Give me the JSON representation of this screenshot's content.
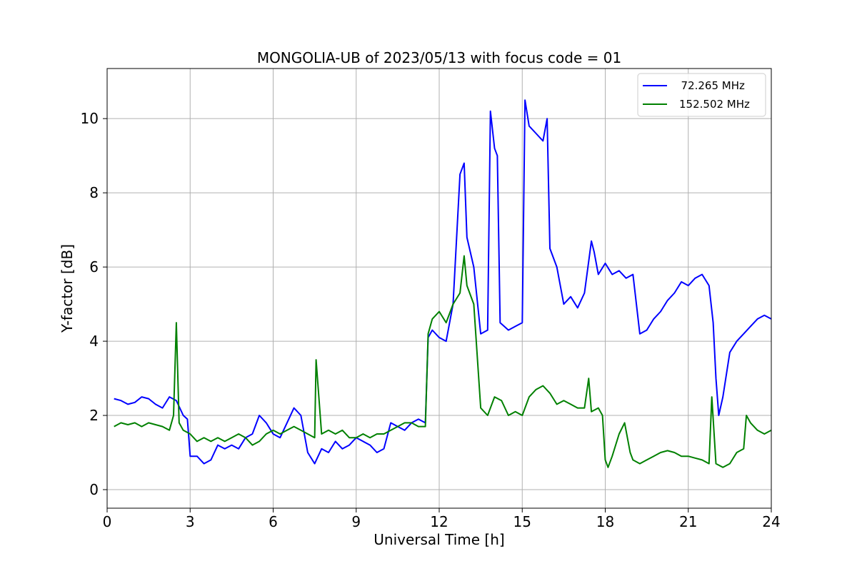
{
  "chart_data": {
    "type": "line",
    "title": "MONGOLIA-UB of 2023/05/13 with focus code = 01",
    "xlabel": "Universal Time [h]",
    "ylabel": "Y-factor [dB]",
    "xlim": [
      0,
      24
    ],
    "ylim": [
      -0.5,
      11.35
    ],
    "x_ticks": [
      0,
      3,
      6,
      9,
      12,
      15,
      18,
      21,
      24
    ],
    "y_ticks": [
      0,
      2,
      4,
      6,
      8,
      10
    ],
    "grid": true,
    "legend_position": "top-right",
    "series": [
      {
        "name": "  72.265 MHz",
        "color": "#0000ff",
        "x": [
          0.25,
          0.5,
          0.75,
          1.0,
          1.25,
          1.5,
          1.75,
          2.0,
          2.25,
          2.5,
          2.75,
          2.9,
          3.0,
          3.25,
          3.5,
          3.75,
          4.0,
          4.25,
          4.5,
          4.75,
          5.0,
          5.25,
          5.5,
          5.75,
          6.0,
          6.25,
          6.5,
          6.75,
          7.0,
          7.25,
          7.5,
          7.75,
          8.0,
          8.25,
          8.5,
          8.75,
          9.0,
          9.25,
          9.5,
          9.75,
          10.0,
          10.25,
          10.5,
          10.75,
          11.0,
          11.25,
          11.5,
          11.6,
          11.75,
          12.0,
          12.25,
          12.5,
          12.75,
          12.9,
          13.0,
          13.25,
          13.5,
          13.75,
          13.85,
          14.0,
          14.1,
          14.2,
          14.5,
          14.75,
          15.0,
          15.1,
          15.25,
          15.5,
          15.75,
          15.9,
          16.0,
          16.25,
          16.5,
          16.75,
          17.0,
          17.25,
          17.5,
          17.6,
          17.75,
          18.0,
          18.25,
          18.5,
          18.75,
          19.0,
          19.25,
          19.5,
          19.75,
          20.0,
          20.25,
          20.5,
          20.75,
          21.0,
          21.25,
          21.5,
          21.75,
          21.9,
          22.0,
          22.1,
          22.25,
          22.5,
          22.75,
          23.0,
          23.25,
          23.5,
          23.75,
          24.0
        ],
        "y": [
          2.45,
          2.4,
          2.3,
          2.35,
          2.5,
          2.45,
          2.3,
          2.2,
          2.5,
          2.4,
          2.0,
          1.9,
          0.9,
          0.9,
          0.7,
          0.8,
          1.2,
          1.1,
          1.2,
          1.1,
          1.4,
          1.5,
          2.0,
          1.8,
          1.5,
          1.4,
          1.8,
          2.2,
          2.0,
          1.0,
          0.7,
          1.1,
          1.0,
          1.3,
          1.1,
          1.2,
          1.4,
          1.3,
          1.2,
          1.0,
          1.1,
          1.8,
          1.7,
          1.6,
          1.8,
          1.9,
          1.8,
          4.1,
          4.3,
          4.1,
          4.0,
          5.0,
          8.5,
          8.8,
          6.8,
          6.0,
          4.2,
          4.3,
          10.2,
          9.2,
          9.0,
          4.5,
          4.3,
          4.4,
          4.5,
          10.5,
          9.8,
          9.6,
          9.4,
          10.0,
          6.5,
          6.0,
          5.0,
          5.2,
          4.9,
          5.3,
          6.7,
          6.4,
          5.8,
          6.1,
          5.8,
          5.9,
          5.7,
          5.8,
          4.2,
          4.3,
          4.6,
          4.8,
          5.1,
          5.3,
          5.6,
          5.5,
          5.7,
          5.8,
          5.5,
          4.5,
          3.0,
          2.0,
          2.5,
          3.7,
          4.0,
          4.2,
          4.4,
          4.6,
          4.7,
          4.6
        ]
      },
      {
        "name": "152.502 MHz",
        "color": "#008000",
        "x": [
          0.25,
          0.5,
          0.75,
          1.0,
          1.25,
          1.5,
          1.75,
          2.0,
          2.25,
          2.4,
          2.5,
          2.6,
          2.75,
          3.0,
          3.25,
          3.5,
          3.75,
          4.0,
          4.25,
          4.5,
          4.75,
          5.0,
          5.25,
          5.5,
          5.75,
          6.0,
          6.25,
          6.5,
          6.75,
          7.0,
          7.25,
          7.5,
          7.55,
          7.75,
          8.0,
          8.25,
          8.5,
          8.75,
          9.0,
          9.25,
          9.5,
          9.75,
          10.0,
          10.25,
          10.5,
          10.75,
          11.0,
          11.25,
          11.5,
          11.6,
          11.75,
          12.0,
          12.25,
          12.5,
          12.75,
          12.9,
          13.0,
          13.25,
          13.5,
          13.75,
          14.0,
          14.25,
          14.5,
          14.75,
          15.0,
          15.25,
          15.5,
          15.75,
          16.0,
          16.25,
          16.5,
          16.75,
          17.0,
          17.25,
          17.4,
          17.5,
          17.75,
          17.9,
          18.0,
          18.1,
          18.25,
          18.5,
          18.7,
          18.9,
          19.0,
          19.25,
          19.5,
          19.75,
          20.0,
          20.25,
          20.5,
          20.75,
          21.0,
          21.25,
          21.5,
          21.75,
          21.85,
          22.0,
          22.25,
          22.5,
          22.75,
          23.0,
          23.1,
          23.25,
          23.5,
          23.75,
          24.0
        ],
        "y": [
          1.7,
          1.8,
          1.75,
          1.8,
          1.7,
          1.8,
          1.75,
          1.7,
          1.6,
          2.0,
          4.5,
          1.8,
          1.6,
          1.5,
          1.3,
          1.4,
          1.3,
          1.4,
          1.3,
          1.4,
          1.5,
          1.4,
          1.2,
          1.3,
          1.5,
          1.6,
          1.5,
          1.6,
          1.7,
          1.6,
          1.5,
          1.4,
          3.5,
          1.5,
          1.6,
          1.5,
          1.6,
          1.4,
          1.4,
          1.5,
          1.4,
          1.5,
          1.5,
          1.6,
          1.7,
          1.8,
          1.8,
          1.7,
          1.7,
          4.2,
          4.6,
          4.8,
          4.5,
          5.0,
          5.3,
          6.3,
          5.5,
          5.0,
          2.2,
          2.0,
          2.5,
          2.4,
          2.0,
          2.1,
          2.0,
          2.5,
          2.7,
          2.8,
          2.6,
          2.3,
          2.4,
          2.3,
          2.2,
          2.2,
          3.0,
          2.1,
          2.2,
          2.0,
          0.8,
          0.6,
          0.9,
          1.5,
          1.8,
          1.0,
          0.8,
          0.7,
          0.8,
          0.9,
          1.0,
          1.05,
          1.0,
          0.9,
          0.9,
          0.85,
          0.8,
          0.7,
          2.5,
          0.7,
          0.6,
          0.7,
          1.0,
          1.1,
          2.0,
          1.8,
          1.6,
          1.5,
          1.6
        ]
      }
    ]
  }
}
